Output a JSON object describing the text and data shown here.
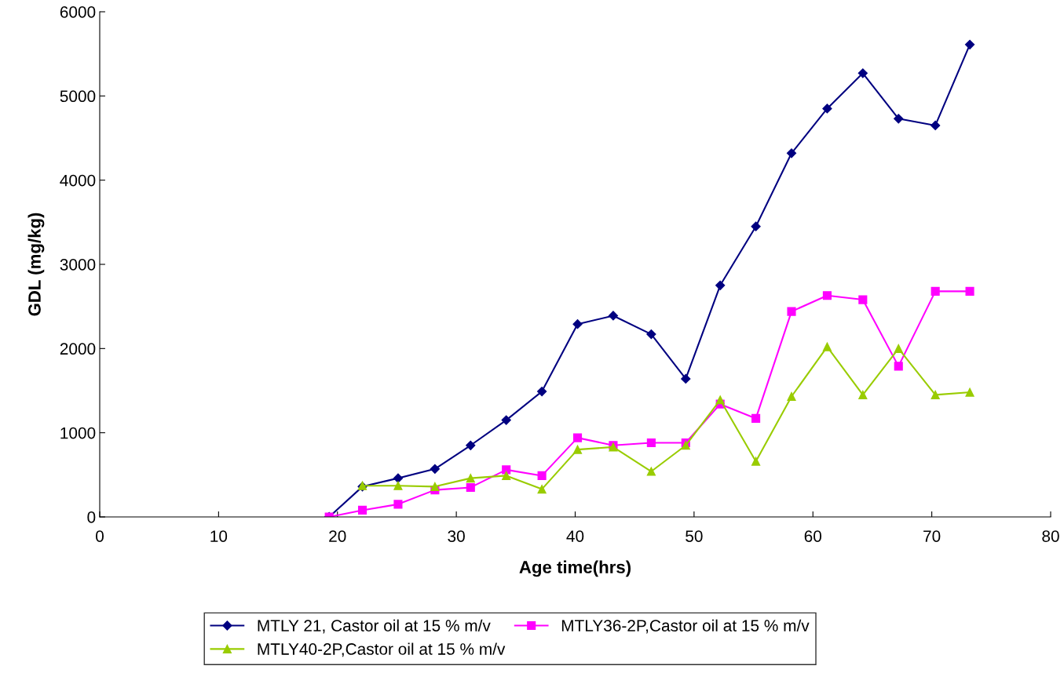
{
  "chart_data": {
    "type": "line",
    "xlabel": "Age time(hrs)",
    "ylabel": "GDL (mg/kg)",
    "xlim": [
      0,
      80
    ],
    "xticks": [
      0,
      10,
      20,
      30,
      40,
      50,
      60,
      70,
      80
    ],
    "ylim": [
      0,
      6000
    ],
    "yticks": [
      0,
      1000,
      2000,
      3000,
      4000,
      5000,
      6000
    ],
    "grid": false,
    "legend": "bottom",
    "line_style": "solid",
    "series": [
      {
        "name": "MTLY 21, Castor oil at 15 % m/v",
        "color": "#000080",
        "marker": "diamond",
        "x": [
          19.3,
          22.1,
          25.1,
          28.2,
          31.2,
          34.2,
          37.2,
          40.2,
          43.2,
          46.4,
          49.3,
          52.2,
          55.2,
          58.2,
          61.2,
          64.2,
          67.2,
          70.3,
          73.2
        ],
        "values": [
          0,
          360,
          460,
          570,
          850,
          1150,
          1490,
          2290,
          2390,
          2170,
          1640,
          2750,
          3450,
          4320,
          4850,
          5270,
          4730,
          4650,
          5610
        ]
      },
      {
        "name": "MTLY36-2P,Castor oil at 15 % m/v",
        "color": "#ff00ff",
        "marker": "square",
        "x": [
          19.3,
          22.1,
          25.1,
          28.2,
          31.2,
          34.2,
          37.2,
          40.2,
          43.2,
          46.4,
          49.3,
          52.2,
          55.2,
          58.2,
          61.2,
          64.2,
          67.2,
          70.3,
          73.2
        ],
        "values": [
          0,
          80,
          150,
          320,
          350,
          560,
          490,
          940,
          850,
          880,
          880,
          1340,
          1170,
          2440,
          2630,
          2580,
          1790,
          2680,
          2680
        ]
      },
      {
        "name": "MTLY40-2P,Castor oil at 15 % m/v",
        "color": "#99cc00",
        "marker": "triangle",
        "x": [
          22.1,
          25.1,
          28.2,
          31.2,
          34.2,
          37.2,
          40.2,
          43.2,
          46.4,
          49.3,
          52.2,
          55.2,
          58.2,
          61.2,
          64.2,
          67.2,
          70.3,
          73.2
        ],
        "values": [
          370,
          370,
          360,
          460,
          490,
          330,
          800,
          830,
          540,
          850,
          1390,
          660,
          1430,
          2020,
          1450,
          2000,
          1450,
          1480
        ]
      }
    ]
  }
}
